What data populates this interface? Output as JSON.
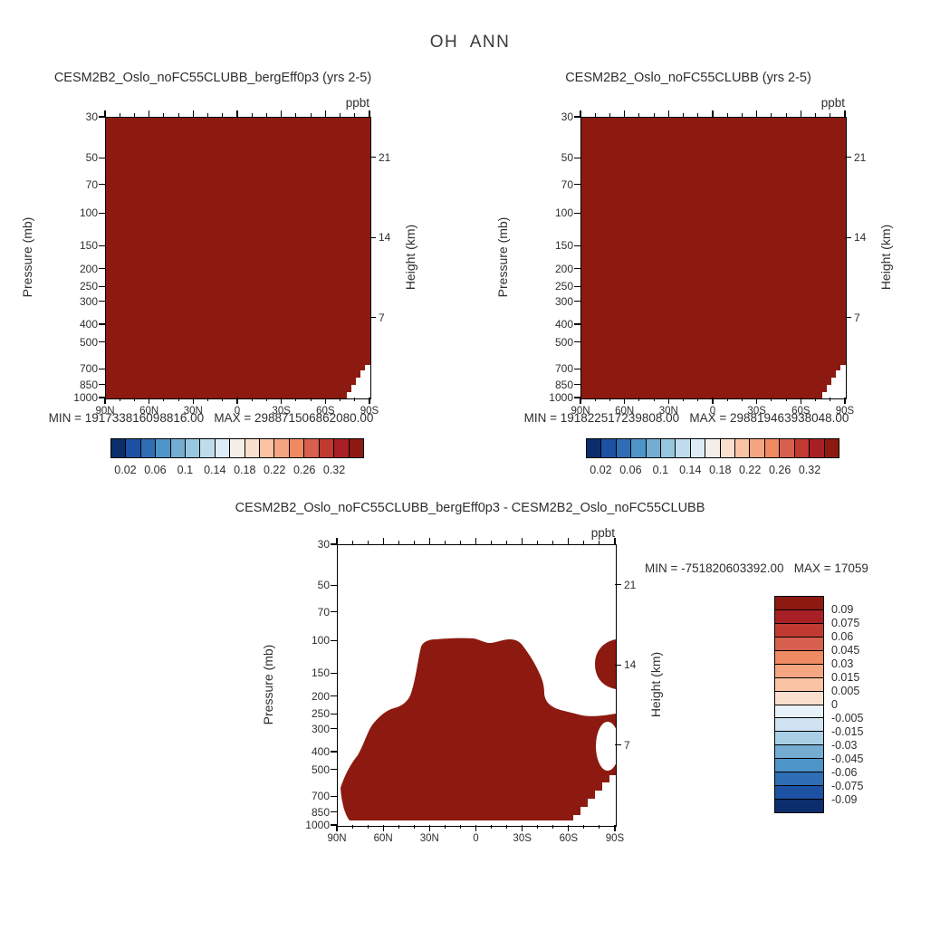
{
  "title": "OH  ANN",
  "colors": {
    "contour_fill": "#8d1a10",
    "background": "#ffffff",
    "text": "#2e2e2e"
  },
  "axes": {
    "pressure_label": "Pressure (mb)",
    "height_label": "Height (km)",
    "units": "ppbt",
    "pressure_ticks": [
      "30",
      "50",
      "70",
      "100",
      "150",
      "200",
      "250",
      "300",
      "400",
      "500",
      "700",
      "850",
      "1000"
    ],
    "height_ticks": [
      "21",
      "14",
      "7"
    ],
    "lat_ticks": [
      "90N",
      "60N",
      "30N",
      "0",
      "30S",
      "60S",
      "90S"
    ]
  },
  "panels": [
    {
      "title": "CESM2B2_Oslo_noFC55CLUBB_bergEff0p3 (yrs 2-5)",
      "min_max": "MIN = 191733816098816.00   MAX = 298871506862080.00"
    },
    {
      "title": "CESM2B2_Oslo_noFC55CLUBB (yrs 2-5)",
      "min_max": "MIN = 191822517239808.00   MAX = 298819463938048.00"
    },
    {
      "title": "CESM2B2_Oslo_noFC55CLUBB_bergEff0p3 - CESM2B2_Oslo_noFC55CLUBB",
      "min_max": "MIN = -751820603392.00   MAX = 17059"
    }
  ],
  "colorbar_h": {
    "labels": [
      "0.02",
      "0.06",
      "0.1",
      "0.14",
      "0.18",
      "0.22",
      "0.26",
      "0.32"
    ],
    "colors": [
      "#0b2d6b",
      "#1c51a3",
      "#2f6db5",
      "#4d94c8",
      "#74add1",
      "#97c6df",
      "#bedcec",
      "#dcebf5",
      "#f5efe9",
      "#fbdfce",
      "#f9c3a4",
      "#f4a582",
      "#ef8a62",
      "#d6604d",
      "#c03a31",
      "#a82025",
      "#8d1a10"
    ]
  },
  "colorbar_v": {
    "labels": [
      "0.09",
      "0.075",
      "0.06",
      "0.045",
      "0.03",
      "0.015",
      "0.005",
      "0",
      "-0.005",
      "-0.015",
      "-0.03",
      "-0.045",
      "-0.06",
      "-0.075",
      "-0.09"
    ],
    "colors": [
      "#8d1a10",
      "#a82025",
      "#c03a31",
      "#d6604d",
      "#ef8a62",
      "#f4a582",
      "#f9c3a4",
      "#fbdfce",
      "#e8f1f8",
      "#cfe3f2",
      "#a9cfe5",
      "#74add1",
      "#4d94c8",
      "#2f6db5",
      "#1c51a3",
      "#0b2d6b"
    ]
  },
  "chart_data": [
    {
      "type": "heatmap",
      "subtype": "filled-contour latitude-pressure cross-section",
      "title": "CESM2B2_Oslo_noFC55CLUBB_bergEff0p3 (yrs 2-5)",
      "units": "ppbt",
      "x_ticks": [
        "90N",
        "60N",
        "30N",
        "0",
        "30S",
        "60S",
        "90S"
      ],
      "y_left_label": "Pressure (mb)",
      "y_left_ticks": [
        30,
        50,
        70,
        100,
        150,
        200,
        250,
        300,
        400,
        500,
        700,
        850,
        1000
      ],
      "y_left_scale": "log",
      "y_right_label": "Height (km)",
      "y_right_ticks": [
        21,
        14,
        7
      ],
      "contour_levels": [
        0.02,
        0.06,
        0.1,
        0.14,
        0.18,
        0.22,
        0.26,
        0.32
      ],
      "min": 191733816098816,
      "max": 298871506862080,
      "field_note": "entire cross-section saturated above the top contour level (dark red); small white missing-data notch near the 90S surface"
    },
    {
      "type": "heatmap",
      "subtype": "filled-contour latitude-pressure cross-section",
      "title": "CESM2B2_Oslo_noFC55CLUBB (yrs 2-5)",
      "units": "ppbt",
      "x_ticks": [
        "90N",
        "60N",
        "30N",
        "0",
        "30S",
        "60S",
        "90S"
      ],
      "y_left_label": "Pressure (mb)",
      "y_left_ticks": [
        30,
        50,
        70,
        100,
        150,
        200,
        250,
        300,
        400,
        500,
        700,
        850,
        1000
      ],
      "y_left_scale": "log",
      "y_right_label": "Height (km)",
      "y_right_ticks": [
        21,
        14,
        7
      ],
      "contour_levels": [
        0.02,
        0.06,
        0.1,
        0.14,
        0.18,
        0.22,
        0.26,
        0.32
      ],
      "min": 191822517239808,
      "max": 298819463938048,
      "field_note": "entire cross-section saturated above the top contour level (dark red); small white missing-data notch near the 90S surface"
    },
    {
      "type": "heatmap",
      "subtype": "difference filled-contour latitude-pressure cross-section",
      "title": "CESM2B2_Oslo_noFC55CLUBB_bergEff0p3 - CESM2B2_Oslo_noFC55CLUBB",
      "units": "ppbt",
      "x_ticks": [
        "90N",
        "60N",
        "30N",
        "0",
        "30S",
        "60S",
        "90S"
      ],
      "y_left_label": "Pressure (mb)",
      "y_left_ticks": [
        30,
        50,
        70,
        100,
        150,
        200,
        250,
        300,
        400,
        500,
        700,
        850,
        1000
      ],
      "y_left_scale": "log",
      "y_right_label": "Height (km)",
      "y_right_ticks": [
        21,
        14,
        7
      ],
      "contour_levels": [
        -0.09,
        -0.075,
        -0.06,
        -0.045,
        -0.03,
        -0.015,
        -0.005,
        0,
        0.005,
        0.015,
        0.03,
        0.045,
        0.06,
        0.075,
        0.09
      ],
      "min": -751820603392,
      "max": "17059 (label truncated at image edge)",
      "field_note": "positive (dark red) blob covering the mid/low troposphere with a tropical upper lobe reaching ~100 mb, a detached patch at upper-right near 90S, a white hole near the 90S mid-levels, and a white terrain notch at the 90S surface"
    }
  ]
}
